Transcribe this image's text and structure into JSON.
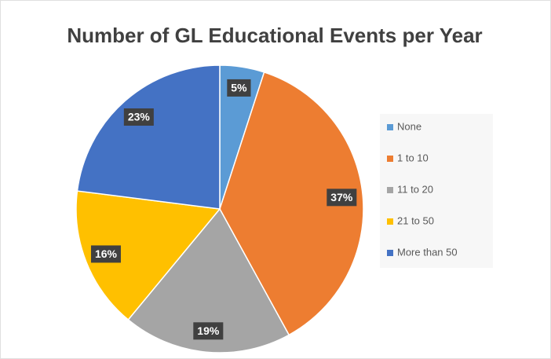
{
  "chart_data": {
    "type": "pie",
    "title": "Number of GL Educational Events per Year",
    "categories": [
      "None",
      "1 to 10",
      "11 to 20",
      "21 to 50",
      "More than 50"
    ],
    "values": [
      5,
      37,
      19,
      16,
      23
    ],
    "value_labels": [
      "5%",
      "37%",
      "19%",
      "16%",
      "23%"
    ],
    "colors": [
      "#5b9bd5",
      "#ed7d31",
      "#a5a5a5",
      "#ffc000",
      "#4472c4"
    ],
    "legend": "right"
  }
}
